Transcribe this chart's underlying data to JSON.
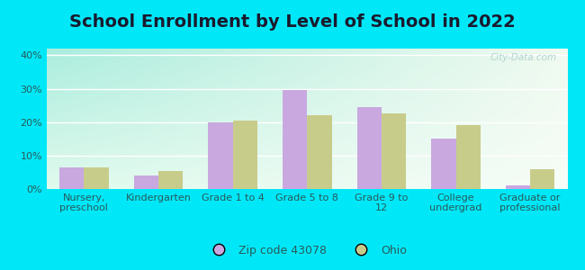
{
  "title": "School Enrollment by Level of School in 2022",
  "categories": [
    "Nursery,\npreschool",
    "Kindergarten",
    "Grade 1 to 4",
    "Grade 5 to 8",
    "Grade 9 to\n12",
    "College\nundergrad",
    "Graduate or\nprofessional"
  ],
  "zip_values": [
    6.5,
    4.0,
    20.0,
    29.5,
    24.5,
    15.0,
    1.0
  ],
  "ohio_values": [
    6.5,
    5.5,
    20.5,
    22.0,
    22.5,
    19.0,
    6.0
  ],
  "zip_color": "#c9a8e0",
  "ohio_color": "#c8cc8a",
  "background_outer": "#00e8f8",
  "background_inner_topleft": "#aaeedd",
  "background_inner_topright": "#e8f8e8",
  "background_inner_bottom": "#f0faf0",
  "ylim": [
    0,
    42
  ],
  "yticks": [
    0,
    10,
    20,
    30,
    40
  ],
  "ytick_labels": [
    "0%",
    "10%",
    "20%",
    "30%",
    "40%"
  ],
  "legend_zip_label": "Zip code 43078",
  "legend_ohio_label": "Ohio",
  "watermark": "City-Data.com",
  "title_fontsize": 14,
  "tick_fontsize": 8,
  "legend_fontsize": 9,
  "title_color": "#1a1a2e",
  "tick_color": "#2a5a5a"
}
